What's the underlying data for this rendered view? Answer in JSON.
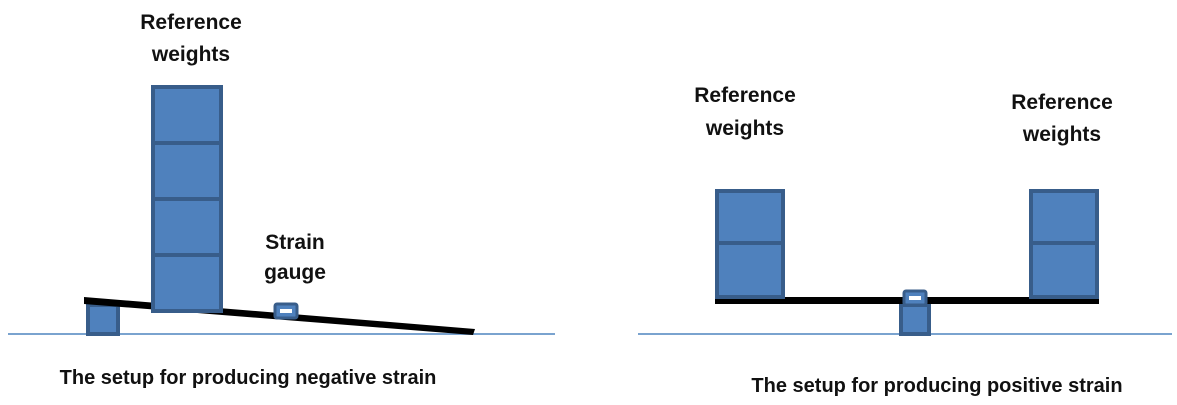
{
  "colors": {
    "weight_fill": "#4f81bd",
    "weight_stroke": "#385d8a",
    "baseline": "#7aa3cf",
    "beam": "#000000",
    "text": "#111111"
  },
  "left_setup": {
    "weights_label": [
      "Reference",
      "weights"
    ],
    "gauge_label": [
      "Strain",
      "gauge"
    ],
    "weight_block_count": 4,
    "caption": "The setup for producing negative strain"
  },
  "right_setup": {
    "left_weights_label": [
      "Reference",
      "weights"
    ],
    "right_weights_label": [
      "Reference",
      "weights"
    ],
    "weight_block_count_each": 2,
    "caption": "The setup for producing positive strain"
  }
}
